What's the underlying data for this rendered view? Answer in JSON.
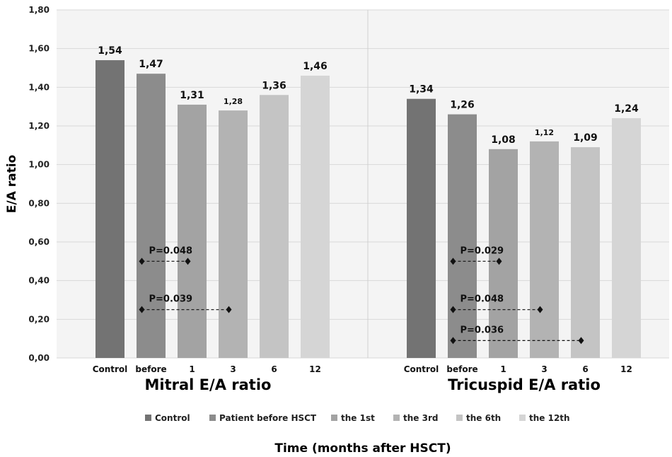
{
  "chart_data": {
    "type": "bar",
    "ylabel": "E/A ratio",
    "xlabel": "Time (months after HSCT)",
    "ylim": [
      0,
      1.8
    ],
    "yticks": [
      "0,00",
      "0,20",
      "0,40",
      "0,60",
      "0,80",
      "1,00",
      "1,20",
      "1,40",
      "1,60",
      "1,80"
    ],
    "grid": true,
    "legend_position": "bottom",
    "groups": [
      {
        "title": "Mitral E/A ratio",
        "categories": [
          "Control",
          "before",
          "1",
          "3",
          "6",
          "12"
        ],
        "values": [
          1.54,
          1.47,
          1.31,
          1.28,
          1.36,
          1.46
        ],
        "value_labels": [
          "1,54",
          "1,47",
          "1,31",
          "1,28",
          "1,36",
          "1,46"
        ],
        "annotations": [
          {
            "text": "P=0.048",
            "from_index": 1,
            "to_index": 2,
            "y": 0.5
          },
          {
            "text": "P=0.039",
            "from_index": 1,
            "to_index": 3,
            "y": 0.25
          }
        ]
      },
      {
        "title": "Tricuspid E/A ratio",
        "categories": [
          "Control",
          "before",
          "1",
          "3",
          "6",
          "12"
        ],
        "values": [
          1.34,
          1.26,
          1.08,
          1.12,
          1.09,
          1.24
        ],
        "value_labels": [
          "1,34",
          "1,26",
          "1,08",
          "1,12",
          "1,09",
          "1,24"
        ],
        "annotations": [
          {
            "text": "P=0.029",
            "from_index": 1,
            "to_index": 2,
            "y": 0.5
          },
          {
            "text": "P=0.048",
            "from_index": 1,
            "to_index": 3,
            "y": 0.25
          },
          {
            "text": "P=0.036",
            "from_index": 1,
            "to_index": 4,
            "y": 0.09
          }
        ]
      }
    ],
    "legend": [
      "Control",
      "Patient before HSCT",
      "the 1st",
      "the 3rd",
      "the 6th",
      "the 12th"
    ],
    "colors": [
      "#737373",
      "#8c8c8c",
      "#a3a3a3",
      "#b3b3b3",
      "#c4c4c4",
      "#d5d5d5"
    ]
  }
}
